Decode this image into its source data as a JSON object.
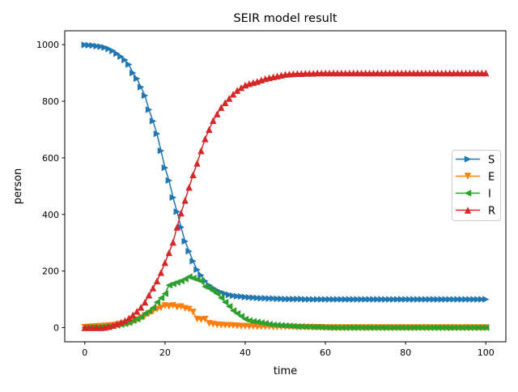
{
  "chart_data": {
    "type": "line",
    "title": "SEIR model result",
    "xlabel": "time",
    "ylabel": "person",
    "xlim": [
      -5,
      105
    ],
    "ylim": [
      -50,
      1049
    ],
    "xticks": [
      0,
      20,
      40,
      60,
      80,
      100
    ],
    "yticks": [
      0,
      200,
      400,
      600,
      800,
      1000
    ],
    "grid": false,
    "legend_position": "center-right",
    "x_start": 0,
    "x_step": 1,
    "series": [
      {
        "name": "S",
        "color": "#1f77b4",
        "marker": "triangle-right",
        "values": [
          999,
          998,
          997,
          995,
          993,
          990,
          985,
          978,
          968,
          958,
          946,
          930,
          900,
          880,
          850,
          820,
          770,
          730,
          685,
          625,
          565,
          520,
          460,
          410,
          355,
          305,
          270,
          235,
          205,
          185,
          165,
          150,
          140,
          132,
          125,
          120,
          116,
          113,
          111,
          110,
          108,
          107,
          106,
          105,
          104,
          104,
          103,
          103,
          102,
          102,
          101,
          101,
          101,
          101,
          101,
          100,
          100,
          100,
          100,
          100,
          100,
          100,
          100,
          100,
          100,
          100,
          100,
          100,
          100,
          100,
          100,
          100,
          100,
          100,
          100,
          100,
          100,
          100,
          100,
          100,
          100,
          100,
          100,
          100,
          100,
          100,
          100,
          100,
          100,
          100,
          100,
          100,
          100,
          100,
          100,
          100,
          100,
          100,
          100,
          100,
          100
        ]
      },
      {
        "name": "E",
        "color": "#ff7f0e",
        "marker": "triangle-down",
        "values": [
          1,
          2,
          3,
          4,
          5,
          6,
          7,
          8,
          10,
          12,
          15,
          18,
          22,
          28,
          35,
          42,
          50,
          58,
          65,
          70,
          78,
          75,
          78,
          72,
          74,
          68,
          65,
          55,
          30,
          28,
          30,
          15,
          12,
          10,
          9,
          8,
          8,
          7,
          6,
          5,
          5,
          4,
          4,
          3,
          3,
          3,
          3,
          2,
          2,
          2,
          2,
          2,
          2,
          1,
          1,
          1,
          1,
          1,
          1,
          1,
          0,
          0,
          0,
          0,
          0,
          0,
          0,
          0,
          0,
          0,
          0,
          0,
          0,
          0,
          0,
          0,
          0,
          0,
          0,
          0,
          0,
          0,
          0,
          0,
          0,
          0,
          0,
          0,
          0,
          0,
          0,
          0,
          0,
          0,
          0,
          0,
          0,
          0,
          0,
          0,
          0
        ]
      },
      {
        "name": "I",
        "color": "#2ca02c",
        "marker": "triangle-left",
        "values": [
          0,
          0,
          1,
          1,
          2,
          3,
          4,
          6,
          8,
          11,
          14,
          18,
          25,
          30,
          38,
          50,
          58,
          70,
          90,
          105,
          120,
          150,
          155,
          160,
          165,
          172,
          180,
          175,
          170,
          165,
          145,
          140,
          130,
          120,
          105,
          90,
          75,
          60,
          50,
          40,
          30,
          25,
          22,
          20,
          17,
          15,
          12,
          10,
          9,
          8,
          7,
          6,
          5,
          4,
          4,
          3,
          3,
          2,
          2,
          1,
          1,
          0,
          0,
          0,
          0,
          0,
          0,
          0,
          0,
          0,
          0,
          0,
          0,
          0,
          0,
          0,
          0,
          0,
          0,
          0,
          0,
          0,
          0,
          0,
          0,
          0,
          0,
          0,
          0,
          0,
          0,
          0,
          0,
          0,
          0,
          0,
          0,
          0,
          0,
          0,
          0
        ]
      },
      {
        "name": "R",
        "color": "#d62728",
        "marker": "triangle-up",
        "values": [
          0,
          0,
          0,
          0,
          0,
          1,
          4,
          8,
          14,
          19,
          25,
          34,
          45,
          58,
          72,
          90,
          115,
          140,
          165,
          195,
          230,
          265,
          302,
          355,
          405,
          450,
          496,
          540,
          581,
          625,
          667,
          700,
          732,
          755,
          778,
          795,
          810,
          825,
          838,
          848,
          857,
          862,
          866,
          870,
          875,
          880,
          883,
          886,
          889,
          892,
          895,
          896,
          897,
          898,
          898,
          899,
          899,
          899,
          900,
          900,
          900,
          900,
          900,
          900,
          900,
          900,
          900,
          900,
          900,
          900,
          900,
          900,
          900,
          900,
          900,
          900,
          900,
          900,
          900,
          900,
          900,
          900,
          900,
          900,
          900,
          900,
          900,
          900,
          900,
          900,
          900,
          900,
          900,
          900,
          900,
          900,
          900,
          900,
          900,
          900,
          900
        ]
      }
    ]
  }
}
